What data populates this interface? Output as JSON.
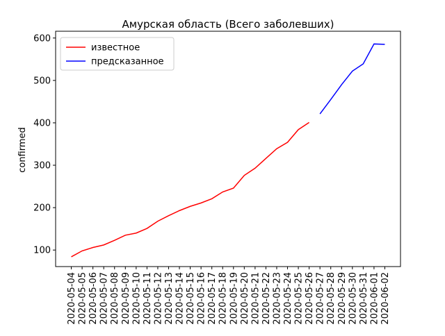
{
  "chart_data": {
    "type": "line",
    "title": "Амурская область (Всего заболевших)",
    "y_label": "confirmed",
    "categories": [
      "2020-05-04",
      "2020-05-05",
      "2020-05-06",
      "2020-05-07",
      "2020-05-08",
      "2020-05-09",
      "2020-05-10",
      "2020-05-11",
      "2020-05-12",
      "2020-05-13",
      "2020-05-14",
      "2020-05-15",
      "2020-05-16",
      "2020-05-17",
      "2020-05-18",
      "2020-05-19",
      "2020-05-20",
      "2020-05-21",
      "2020-05-22",
      "2020-05-23",
      "2020-05-24",
      "2020-05-25",
      "2020-05-26",
      "2020-05-27",
      "2020-05-28",
      "2020-05-29",
      "2020-05-30",
      "2020-05-31",
      "2020-06-01",
      "2020-06-02"
    ],
    "series": [
      {
        "name": "известное",
        "color": "#ff0000",
        "values": [
          84,
          98,
          106,
          112,
          123,
          135,
          140,
          151,
          168,
          181,
          193,
          203,
          211,
          221,
          237,
          246,
          276,
          293,
          316,
          339,
          354,
          384,
          401,
          null,
          null,
          null,
          null,
          null,
          null,
          null
        ]
      },
      {
        "name": "предсказанное",
        "color": "#0000ff",
        "values": [
          null,
          null,
          null,
          null,
          null,
          null,
          null,
          null,
          null,
          null,
          null,
          null,
          null,
          null,
          null,
          null,
          null,
          null,
          null,
          null,
          null,
          null,
          null,
          421,
          455,
          490,
          522,
          539,
          586,
          585
        ]
      }
    ],
    "ylim": [
      61,
      616
    ],
    "yticks": [
      100,
      200,
      300,
      400,
      500,
      600
    ],
    "legend": "upper left"
  }
}
